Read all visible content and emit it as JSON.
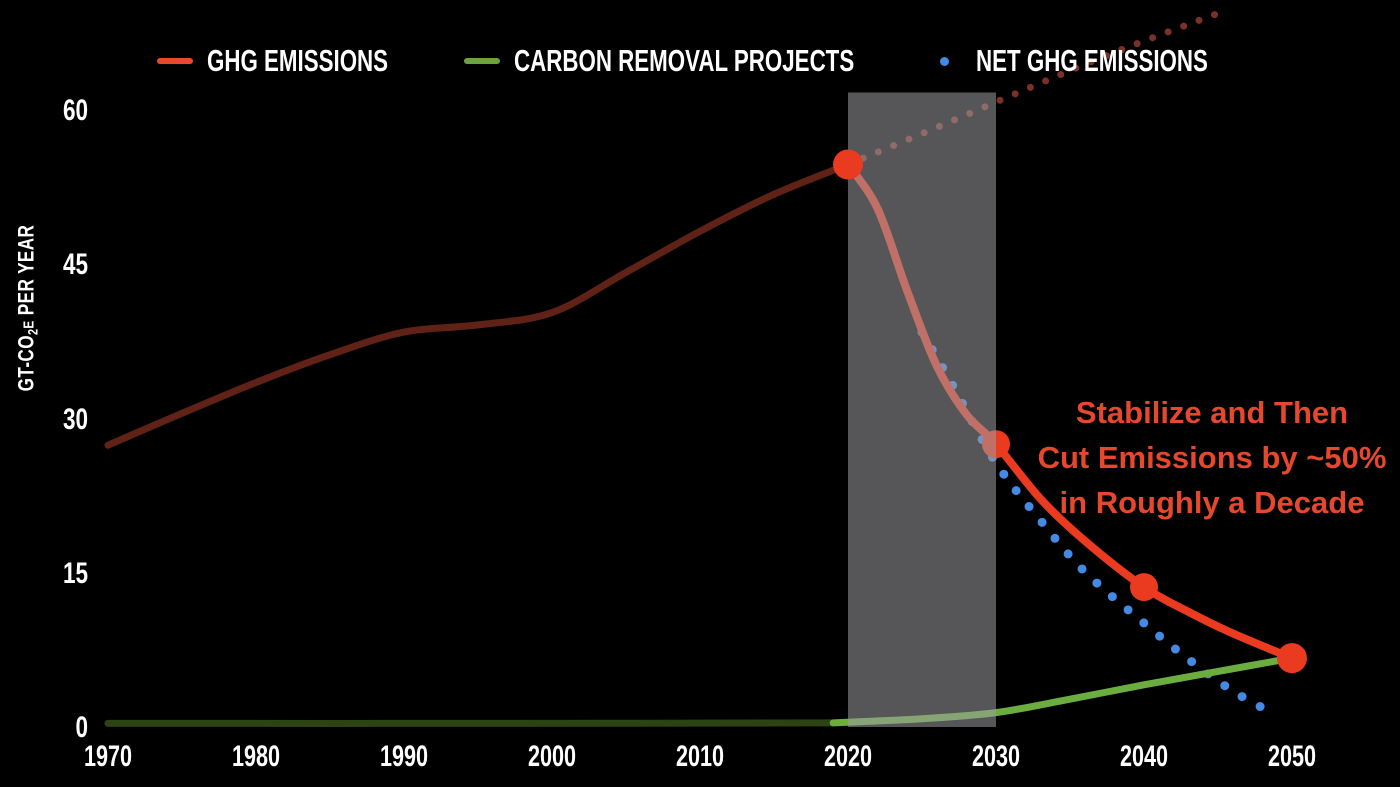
{
  "background": "#000000",
  "text_color": "#ffffff",
  "chart_data": {
    "type": "line",
    "title": "",
    "ylabel": {
      "prefix": "GT-CO",
      "sub": "2",
      "small": "E",
      "rest": " PER YEAR"
    },
    "y_ticks": [
      60,
      45,
      30,
      15,
      0
    ],
    "x_ticks": [
      1970,
      1980,
      1990,
      2000,
      2010,
      2020,
      2030,
      2040,
      2050
    ],
    "ylim": [
      0,
      60
    ],
    "xlim": [
      1970,
      2050
    ],
    "grid": false,
    "legend_position": "top",
    "legend": [
      {
        "label": "GHG EMISSIONS",
        "color": "#e8492d",
        "marker": "dash"
      },
      {
        "label": "CARBON REMOVAL PROJECTS",
        "color": "#6da33d",
        "marker": "dash"
      },
      {
        "label": "NET GHG EMISSIONS",
        "color": "#4489e4",
        "marker": "dot"
      }
    ],
    "series": [
      {
        "name": "ghg-emissions-historical",
        "color": "#602117",
        "width": 7,
        "style": "solid",
        "points": [
          [
            1970,
            27.5
          ],
          [
            1975,
            30.6
          ],
          [
            1980,
            33.6
          ],
          [
            1985,
            36.3
          ],
          [
            1990,
            38.5
          ],
          [
            1995,
            39.2
          ],
          [
            2000,
            40.4
          ],
          [
            2005,
            44.3
          ],
          [
            2010,
            48.3
          ],
          [
            2015,
            51.9
          ],
          [
            2020,
            54.8
          ]
        ]
      },
      {
        "name": "ghg-emissions-business-as-usual",
        "color": "#7c3128",
        "width": 7,
        "style": "dotted",
        "gap": 16.5,
        "points": [
          [
            2020,
            54.8
          ],
          [
            2026,
            58.4
          ],
          [
            2032,
            62.1
          ],
          [
            2038,
            65.7
          ],
          [
            2045,
            69.5
          ]
        ]
      },
      {
        "name": "net-ghg-emissions",
        "color": "#4489e4",
        "width": 9,
        "style": "dotted",
        "gap": 20.5,
        "points": [
          [
            2025,
            38.5
          ],
          [
            2027,
            33.5
          ],
          [
            2030,
            25.8
          ],
          [
            2033,
            20.2
          ],
          [
            2036,
            15.2
          ],
          [
            2040,
            10.2
          ],
          [
            2043,
            6.7
          ],
          [
            2046,
            3.6
          ],
          [
            2049,
            1.2
          ]
        ]
      },
      {
        "name": "ghg-emissions-reduction",
        "color": "#ea3a20",
        "width": 8,
        "style": "solid",
        "points": [
          [
            2020,
            54.8
          ],
          [
            2022,
            50.5
          ],
          [
            2024,
            42.5
          ],
          [
            2026,
            35.2
          ],
          [
            2028,
            30.5
          ],
          [
            2030,
            27.6
          ],
          [
            2033,
            22.3
          ],
          [
            2036,
            18.2
          ],
          [
            2040,
            13.7
          ],
          [
            2043,
            11.3
          ],
          [
            2046,
            9.2
          ],
          [
            2050,
            6.8
          ]
        ]
      },
      {
        "name": "carbon-removal-historical",
        "color": "#2c4314",
        "width": 7,
        "style": "solid",
        "points": [
          [
            1970,
            0.45
          ],
          [
            1995,
            0.45
          ],
          [
            2019,
            0.5
          ]
        ]
      },
      {
        "name": "carbon-removal-projects",
        "color": "#6cad3f",
        "width": 7,
        "style": "solid",
        "points": [
          [
            2019,
            0.5
          ],
          [
            2025,
            0.9
          ],
          [
            2030,
            1.5
          ],
          [
            2035,
            2.8
          ],
          [
            2040,
            4.2
          ],
          [
            2045,
            5.5
          ],
          [
            2050,
            6.8
          ]
        ]
      }
    ],
    "markers": [
      {
        "year": 2020,
        "value": 54.8,
        "color": "#ea3a20",
        "radius": 15,
        "above_band": true
      },
      {
        "year": 2030,
        "value": 27.6,
        "color": "#ea3a20",
        "radius": 14,
        "above_band": false
      },
      {
        "year": 2040,
        "value": 13.7,
        "color": "#ea3a20",
        "radius": 14,
        "above_band": true
      },
      {
        "year": 2050,
        "value": 6.8,
        "color": "#ea3a20",
        "radius": 15,
        "above_band": true
      }
    ],
    "band": {
      "from_year": 2020,
      "to_year": 2030,
      "top_value": 61.8,
      "bottom_value": 0.1,
      "color": "rgba(157,157,160,0.55)"
    },
    "annotation": {
      "line1": "Stabilize and Then",
      "line2": "Cut Emissions by ~50%",
      "line3": "in Roughly a Decade",
      "color": "#e5482c"
    }
  }
}
